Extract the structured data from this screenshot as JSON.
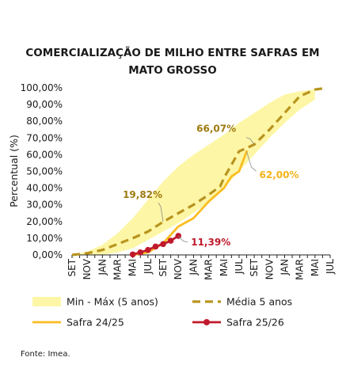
{
  "chart_data": {
    "type": "line",
    "title_lines": [
      "COMERCIALIZAÇÃO DE MILHO ENTRE SAFRAS EM",
      "MATO GROSSO"
    ],
    "ylabel": "Percentual (%)",
    "ylim": [
      0,
      100
    ],
    "y_ticks": [
      "0,00%",
      "10,00%",
      "20,00%",
      "30,00%",
      "40,00%",
      "50,00%",
      "60,00%",
      "70,00%",
      "80,00%",
      "90,00%",
      "100,00%"
    ],
    "categories": [
      "SET",
      "NOV",
      "JAN",
      "MAR",
      "MAI",
      "JUL",
      "SET",
      "NOV",
      "JAN",
      "MAR",
      "MAI",
      "JUL",
      "SET",
      "NOV",
      "JAN",
      "MAR",
      "MAI",
      "JUL"
    ],
    "band": {
      "name": "Min - Máx (5 anos)",
      "x": [
        0,
        2,
        4,
        6,
        8,
        10,
        12,
        14,
        16,
        18,
        20,
        22,
        24,
        26,
        28,
        30,
        32
      ],
      "min": [
        0,
        0,
        0,
        1.5,
        4,
        9,
        14,
        19,
        25,
        32,
        40,
        50,
        60,
        70,
        79,
        87,
        93
      ],
      "max": [
        0,
        2,
        6,
        13,
        22,
        33,
        44,
        53,
        60,
        66,
        72,
        79,
        85,
        91,
        96,
        98,
        99
      ]
    },
    "series": [
      {
        "name": "Média 5 anos",
        "color": "#b8941e",
        "style": "dashed",
        "x": [
          0,
          2,
          4,
          6,
          8,
          10,
          12,
          14,
          16,
          18,
          19.5,
          20,
          21,
          22,
          24,
          26,
          28,
          30,
          32,
          33
        ],
        "values": [
          0,
          1,
          3,
          6.5,
          10,
          14,
          19.82,
          25,
          30,
          36,
          41,
          46,
          54,
          62,
          66.07,
          75,
          85,
          95,
          99,
          99.6
        ]
      },
      {
        "name": "Safra 24/25",
        "color": "#fbbd21",
        "style": "solid",
        "x": [
          8,
          10,
          12,
          14,
          16,
          18,
          19.5,
          20,
          21,
          22,
          23
        ],
        "values": [
          0,
          1.5,
          7,
          17,
          22,
          32,
          38,
          40,
          47,
          50,
          62.0
        ]
      },
      {
        "name": "Safra 25/26",
        "color": "#c01a2c",
        "style": "solid-markers",
        "x": [
          8,
          9,
          10,
          11,
          12,
          13,
          14
        ],
        "values": [
          0.3,
          1.5,
          3.0,
          5.0,
          6.5,
          8.5,
          11.39
        ]
      }
    ],
    "annotations": [
      {
        "text": "66,07%",
        "series": "Média 5 anos",
        "x": 24,
        "value": 66.07,
        "color": "#9e7b0f"
      },
      {
        "text": "62,00%",
        "series": "Safra 24/25",
        "x": 23,
        "value": 62.0,
        "color": "#f5b31a"
      },
      {
        "text": "19,82%",
        "series": "Média 5 anos",
        "x": 12,
        "value": 19.82,
        "color": "#9e7b0f"
      },
      {
        "text": "11,39%",
        "series": "Safra 25/26",
        "x": 14,
        "value": 11.39,
        "color": "#c01a2c"
      }
    ],
    "legend_position": "bottom"
  },
  "source": "Fonte: Imea."
}
